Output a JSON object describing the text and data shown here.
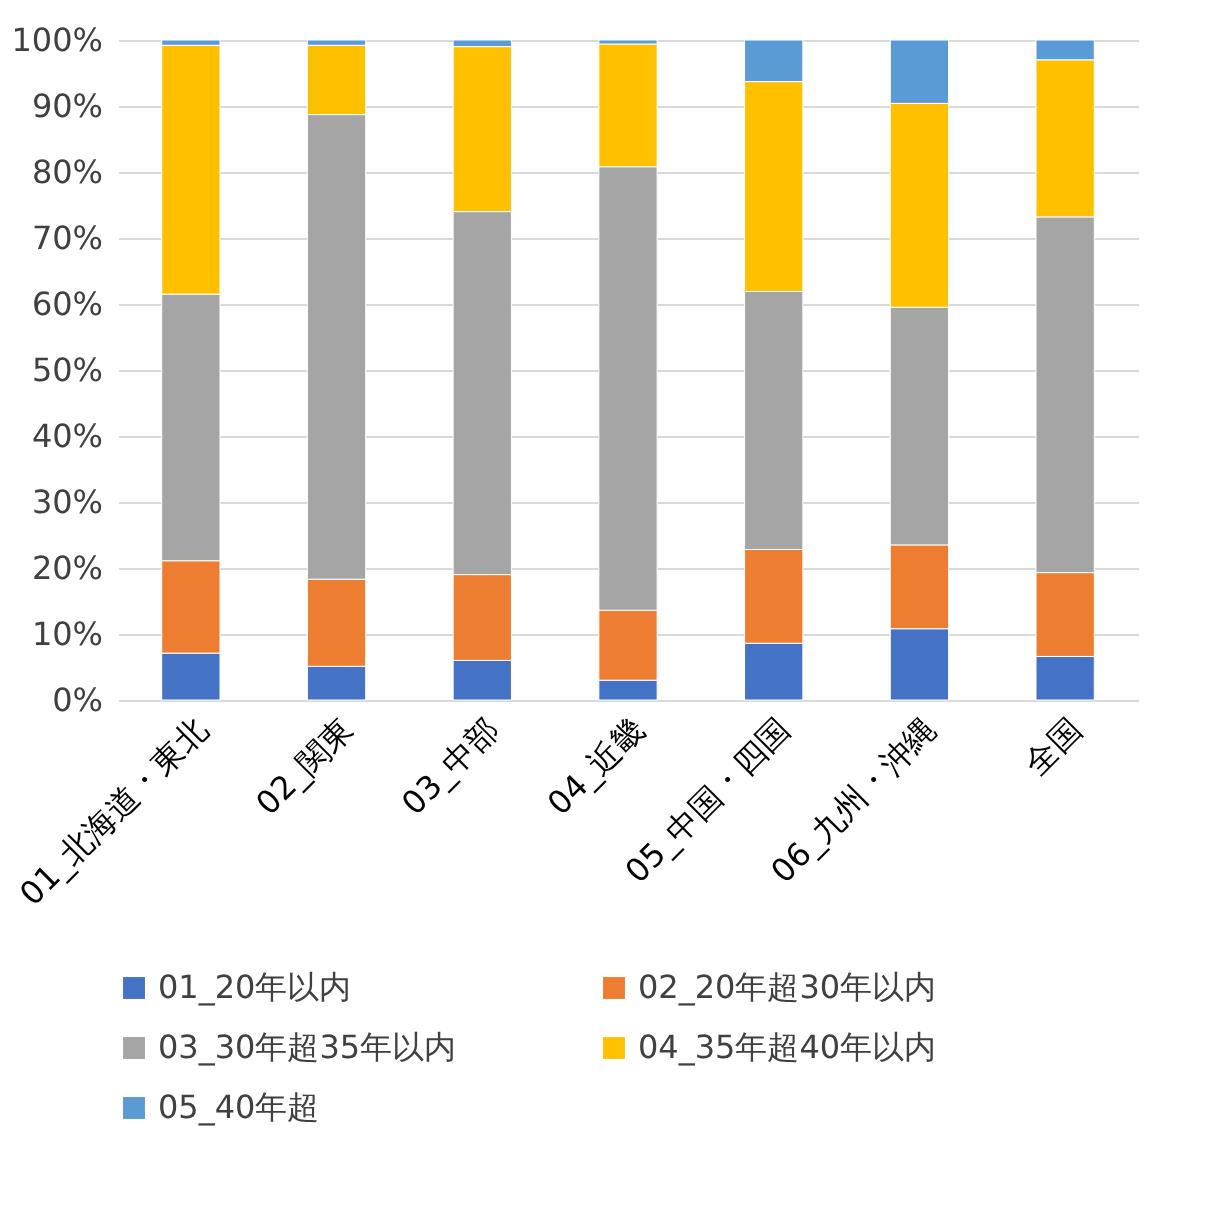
{
  "chart_data": {
    "type": "bar",
    "stacked": true,
    "categories": [
      "01_北海道・東北",
      "02_関東",
      "03_中部",
      "04_近畿",
      "05_中国・四国",
      "06_九州・沖縄",
      "全国"
    ],
    "series": [
      {
        "name": "01_20年以内",
        "color": "#4472c4",
        "values": [
          7.1,
          5.1,
          6.0,
          3.0,
          8.6,
          10.8,
          6.6
        ]
      },
      {
        "name": "02_20年超30年以内",
        "color": "#ed7d31",
        "values": [
          14.0,
          13.2,
          13.0,
          10.6,
          14.2,
          12.7,
          12.7
        ]
      },
      {
        "name": "03_30年超35年以内",
        "color": "#a5a5a5",
        "values": [
          40.4,
          70.4,
          55.0,
          67.2,
          39.1,
          36.0,
          53.9
        ]
      },
      {
        "name": "04_35年超40年以内",
        "color": "#ffc000",
        "values": [
          37.7,
          10.5,
          25.0,
          18.6,
          31.8,
          30.9,
          23.8
        ]
      },
      {
        "name": "05_40年超",
        "color": "#5b9bd5",
        "values": [
          0.8,
          0.8,
          1.0,
          0.6,
          6.3,
          9.6,
          3.0
        ]
      }
    ],
    "ylim": [
      0,
      100
    ],
    "yticks": [
      {
        "value": 0,
        "label": "0%"
      },
      {
        "value": 10,
        "label": "10%"
      },
      {
        "value": 20,
        "label": "20%"
      },
      {
        "value": 30,
        "label": "30%"
      },
      {
        "value": 40,
        "label": "40%"
      },
      {
        "value": 50,
        "label": "50%"
      },
      {
        "value": 60,
        "label": "60%"
      },
      {
        "value": 70,
        "label": "70%"
      },
      {
        "value": 80,
        "label": "80%"
      },
      {
        "value": 90,
        "label": "90%"
      },
      {
        "value": 100,
        "label": "100%"
      }
    ],
    "grid": "y",
    "legend": "bottom"
  }
}
